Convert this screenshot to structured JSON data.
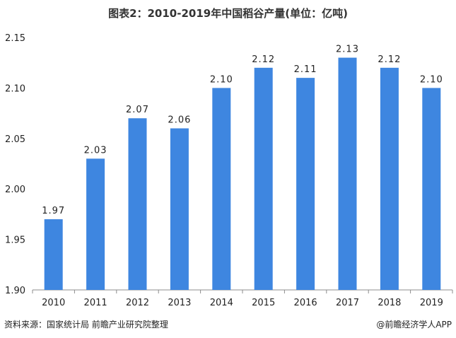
{
  "chart_data": {
    "type": "bar",
    "title": "图表2：2010-2019年中国稻谷产量(单位：亿吨)",
    "categories": [
      "2010",
      "2011",
      "2012",
      "2013",
      "2014",
      "2015",
      "2016",
      "2017",
      "2018",
      "2019"
    ],
    "values": [
      1.97,
      2.03,
      2.07,
      2.06,
      2.1,
      2.12,
      2.11,
      2.13,
      2.12,
      2.1
    ],
    "value_labels": [
      "1.97",
      "2.03",
      "2.07",
      "2.06",
      "2.10",
      "2.12",
      "2.11",
      "2.13",
      "2.12",
      "2.10"
    ],
    "ylim": [
      1.9,
      2.15
    ],
    "yticks": [
      "1.90",
      "1.95",
      "2.00",
      "2.05",
      "2.10",
      "2.15"
    ],
    "xlabel": "",
    "ylabel": "",
    "grid": false,
    "bar_color": "#3e86e0"
  },
  "footer": {
    "source": "资料来源：国家统计局 前瞻产业研究院整理",
    "brand": "@前瞻经济学人APP"
  }
}
